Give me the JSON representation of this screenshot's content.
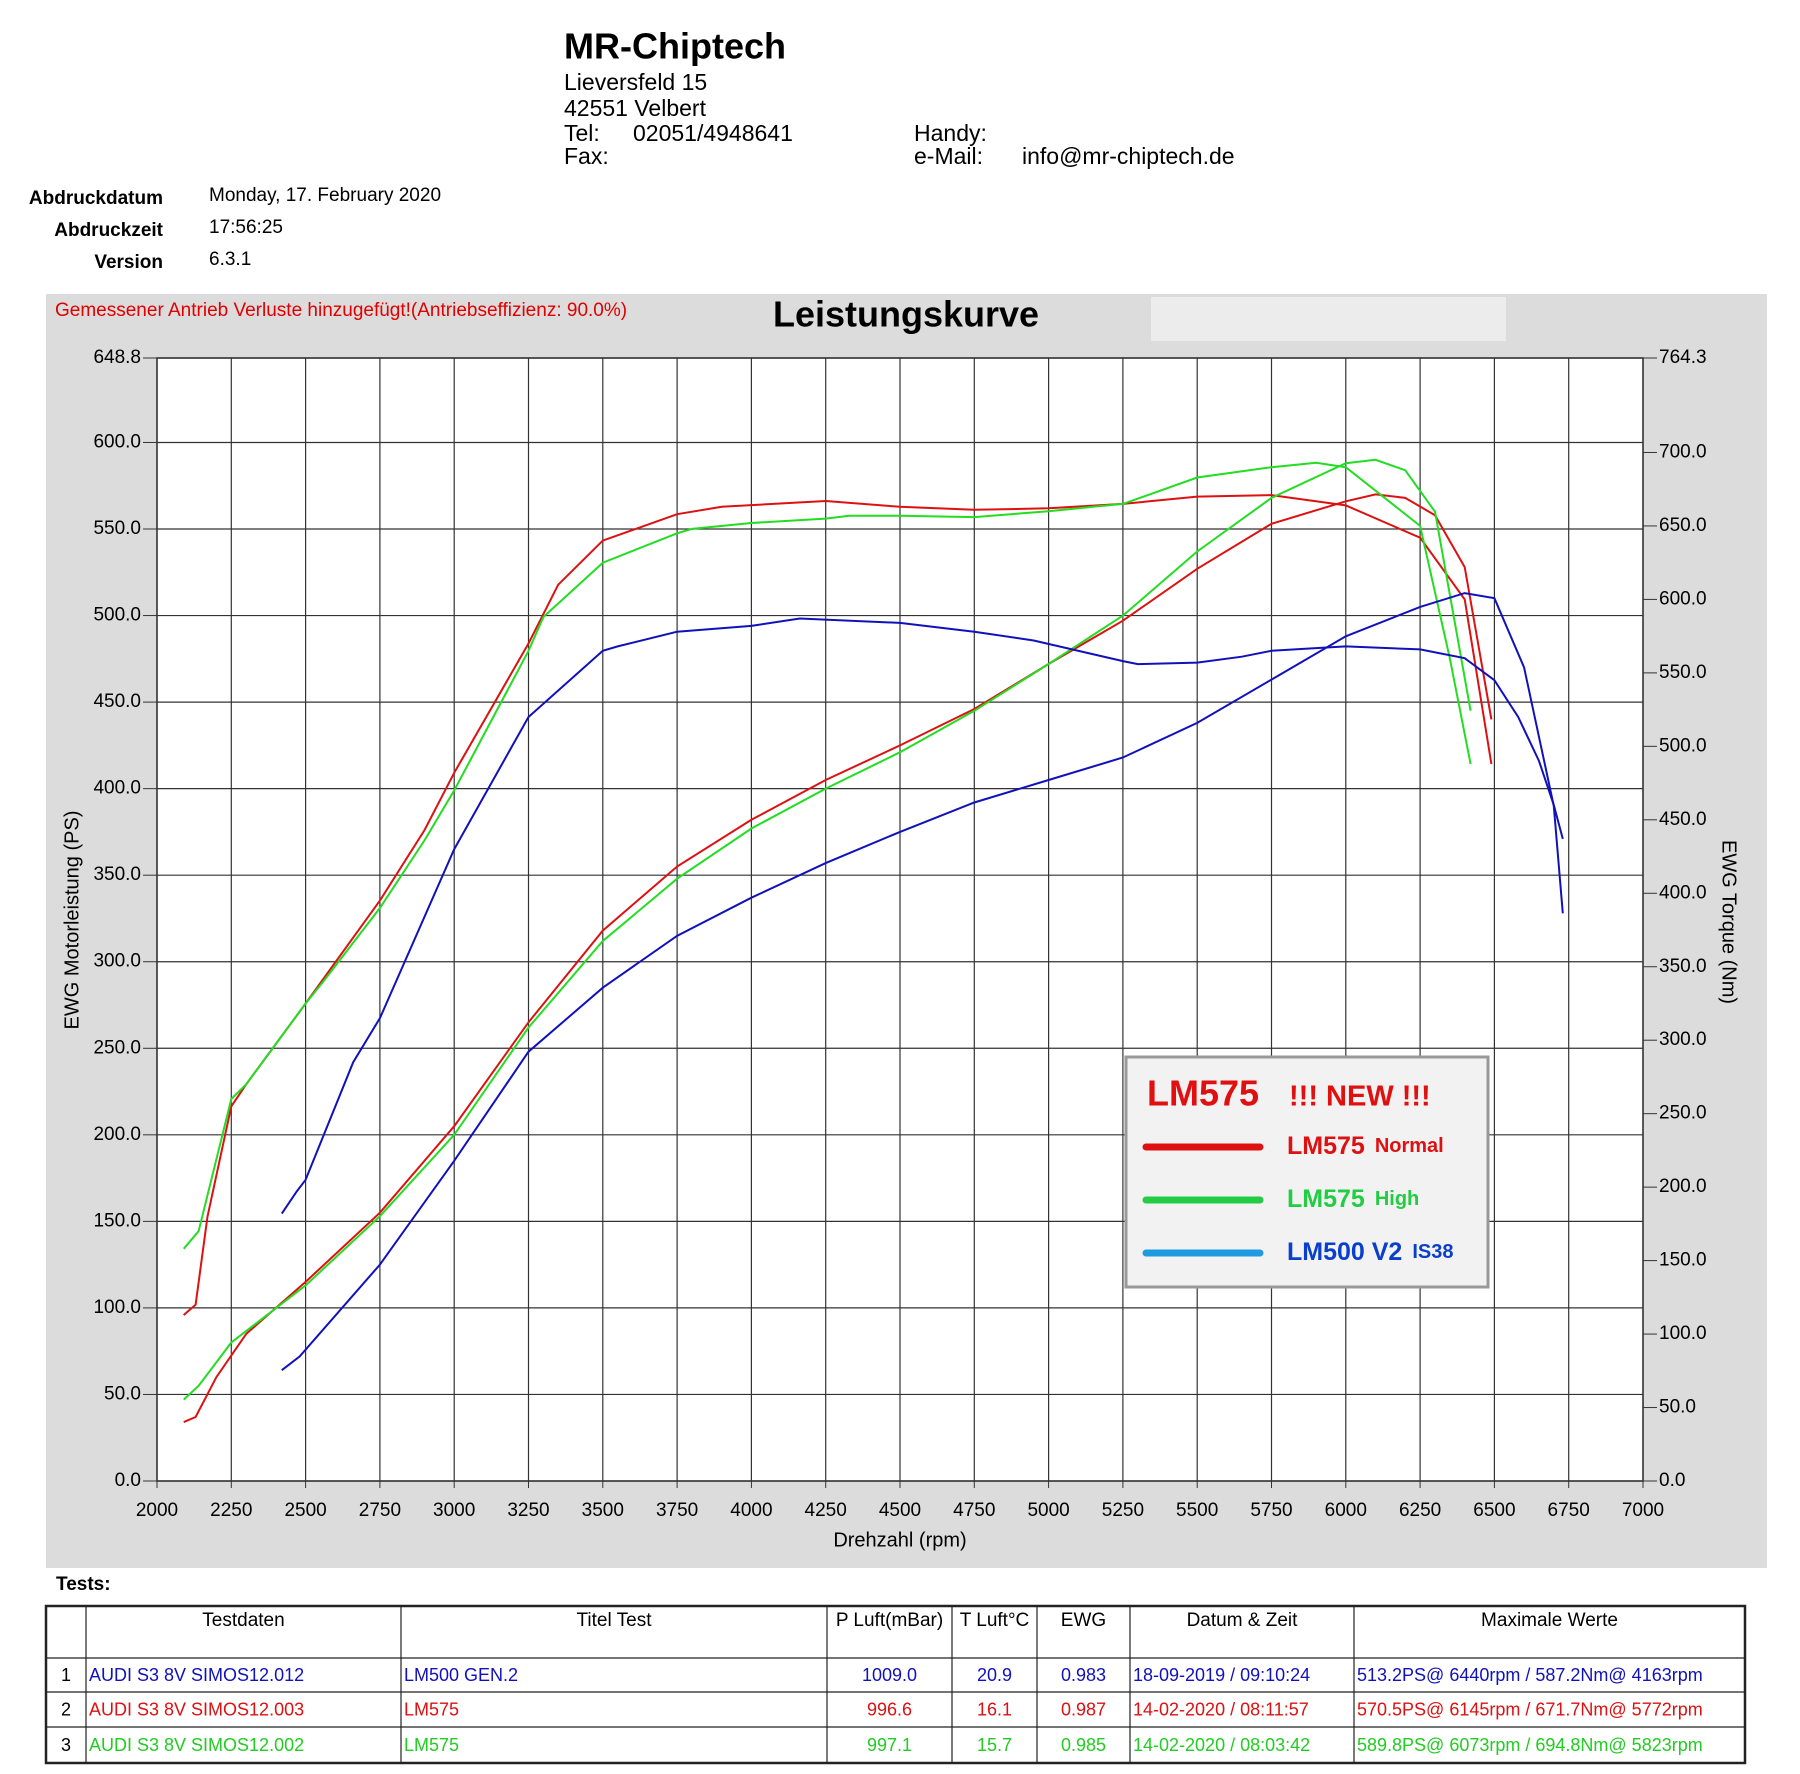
{
  "header": {
    "company": "MR-Chiptech",
    "street": "Lieversfeld 15",
    "city": "42551 Velbert",
    "tel_label": "Tel:",
    "tel": "02051/4948641",
    "fax_label": "Fax:",
    "handy_label": "Handy:",
    "email_label": "e-Mail:",
    "email": "info@mr-chiptech.de"
  },
  "info": [
    {
      "label": "Abdruckdatum",
      "value": "Monday, 17. February 2020"
    },
    {
      "label": "Abdruckzeit",
      "value": "17:56:25"
    },
    {
      "label": "Version",
      "value": "6.3.1"
    }
  ],
  "chart_data": {
    "type": "line",
    "title": "Leistungskurve",
    "note": "Gemessener Antrieb Verluste hinzugefügt!(Antriebseffizienz: 90.0%)",
    "xlabel": "Drehzahl (rpm)",
    "ylabel": "EWG Motorleistung (PS)",
    "y2label": "EWG Torque (Nm)",
    "xlim": [
      2000,
      7000
    ],
    "xticks": [
      2000,
      2250,
      2500,
      2750,
      3000,
      3250,
      3500,
      3750,
      4000,
      4250,
      4500,
      4750,
      5000,
      5250,
      5500,
      5750,
      6000,
      6250,
      6500,
      6750,
      7000
    ],
    "ylim": [
      0,
      648.8
    ],
    "yticks": [
      {
        "value": 0,
        "label": "0.0"
      },
      {
        "value": 50,
        "label": "50.0"
      },
      {
        "value": 100,
        "label": "100.0"
      },
      {
        "value": 150,
        "label": "150.0"
      },
      {
        "value": 200,
        "label": "200.0"
      },
      {
        "value": 250,
        "label": "250.0"
      },
      {
        "value": 300,
        "label": "300.0"
      },
      {
        "value": 350,
        "label": "350.0"
      },
      {
        "value": 400,
        "label": "400.0"
      },
      {
        "value": 450,
        "label": "450.0"
      },
      {
        "value": 500,
        "label": "500.0"
      },
      {
        "value": 550,
        "label": "550.0"
      },
      {
        "value": 600,
        "label": "600.0"
      },
      648.8
    ],
    "y2lim": [
      0,
      764.3
    ],
    "y2ticks": [
      {
        "value": 0,
        "label": "0.0"
      },
      {
        "value": 50,
        "label": "50.0"
      },
      {
        "value": 100,
        "label": "100.0"
      },
      {
        "value": 150,
        "label": "150.0"
      },
      {
        "value": 200,
        "label": "200.0"
      },
      {
        "value": 250,
        "label": "250.0"
      },
      {
        "value": 300,
        "label": "300.0"
      },
      {
        "value": 350,
        "label": "350.0"
      },
      {
        "value": 400,
        "label": "400.0"
      },
      {
        "value": 450,
        "label": "450.0"
      },
      {
        "value": 500,
        "label": "500.0"
      },
      {
        "value": 550,
        "label": "550.0"
      },
      {
        "value": 600,
        "label": "600.0"
      },
      {
        "value": 650,
        "label": "650.0"
      },
      {
        "value": 700,
        "label": "700.0"
      },
      764.3
    ],
    "grid": true,
    "series": [
      {
        "color": "#dd1111",
        "x": [
          2090,
          2130,
          2200,
          2300,
          2500,
          2750,
          3000,
          3250,
          3500,
          3750,
          4000,
          4250,
          4500,
          4750,
          5000,
          5250,
          5500,
          5750,
          6000,
          6100,
          6200,
          6300,
          6400,
          6490
        ],
        "values": [
          34,
          37,
          60,
          85,
          115,
          155,
          205,
          265,
          318,
          355,
          382,
          405,
          425,
          446,
          472,
          497,
          527,
          553,
          566,
          570,
          568,
          558,
          528,
          440
        ]
      },
      {
        "color": "#dd1111",
        "axis": "y2",
        "x": [
          2090,
          2130,
          2170,
          2250,
          2300,
          2500,
          2750,
          2900,
          3000,
          3250,
          3350,
          3500,
          3750,
          3900,
          4250,
          4500,
          4750,
          5000,
          5250,
          5500,
          5750,
          6000,
          6250,
          6400,
          6490
        ],
        "values": [
          113,
          120,
          180,
          255,
          270,
          325,
          395,
          443,
          482,
          570,
          610,
          640,
          658,
          663,
          667,
          663,
          661,
          662,
          665,
          670,
          671,
          664,
          642,
          600,
          488
        ]
      },
      {
        "color": "#22dd22",
        "x": [
          2090,
          2140,
          2250,
          2500,
          2750,
          3000,
          3250,
          3500,
          3750,
          4000,
          4250,
          4500,
          4750,
          5000,
          5250,
          5500,
          5750,
          6000,
          6100,
          6200,
          6300,
          6420
        ],
        "values": [
          47,
          55,
          80,
          113,
          153,
          200,
          262,
          312,
          348,
          377,
          400,
          421,
          445,
          472,
          500,
          537,
          568,
          588,
          590,
          584,
          560,
          445
        ]
      },
      {
        "color": "#22dd22",
        "axis": "y2",
        "x": [
          2090,
          2140,
          2250,
          2300,
          2500,
          2560,
          2750,
          2900,
          3000,
          3250,
          3300,
          3500,
          3750,
          3800,
          4000,
          4250,
          4330,
          4500,
          4750,
          5000,
          5150,
          5250,
          5500,
          5750,
          5900,
          6000,
          6250,
          6350,
          6420
        ],
        "values": [
          158,
          170,
          260,
          270,
          325,
          340,
          390,
          436,
          470,
          565,
          588,
          625,
          645,
          648,
          652,
          655,
          657,
          657,
          656,
          660,
          663,
          665,
          683,
          690,
          693,
          690,
          650,
          560,
          488
        ]
      },
      {
        "color": "#1111bb",
        "x": [
          2420,
          2480,
          2750,
          3000,
          3250,
          3500,
          3750,
          4000,
          4250,
          4500,
          4750,
          5000,
          5250,
          5500,
          5750,
          6000,
          6250,
          6400,
          6500,
          6600,
          6700,
          6730
        ],
        "values": [
          64,
          72,
          125,
          185,
          248,
          285,
          315,
          337,
          357,
          375,
          392,
          405,
          418,
          438,
          463,
          488,
          505,
          513,
          510,
          470,
          390,
          328
        ]
      },
      {
        "color": "#1111bb",
        "axis": "y2",
        "x": [
          2420,
          2470,
          2500,
          2660,
          2750,
          3000,
          3250,
          3500,
          3550,
          3750,
          4000,
          4163,
          4500,
          4750,
          4950,
          5250,
          5300,
          5500,
          5650,
          5750,
          6000,
          6250,
          6400,
          6500,
          6580,
          6650,
          6700,
          6730
        ],
        "values": [
          182,
          197,
          205,
          285,
          315,
          430,
          520,
          565,
          568,
          578,
          582,
          587,
          584,
          578,
          572,
          558,
          556,
          557,
          561,
          565,
          568,
          566,
          560,
          545,
          520,
          490,
          460,
          437
        ]
      }
    ],
    "legend": {
      "title": "LM575",
      "title_note": "!!! NEW !!!",
      "items": [
        {
          "label": "LM575",
          "sub": "Normal",
          "line_color": "#dd1111",
          "text_color": "#dd1111"
        },
        {
          "label": "LM575",
          "sub": "High",
          "line_color": "#22cc44",
          "text_color": "#22cc44"
        },
        {
          "label": "LM500 V2",
          "sub": "IS38",
          "line_color": "#1e9be0",
          "text_color": "#0a3fcc"
        }
      ]
    }
  },
  "tests": {
    "label": "Tests:",
    "columns": [
      "Testdaten",
      "Titel Test",
      "P Luft(mBar)",
      "T Luft°C",
      "EWG",
      "Datum & Zeit",
      "Maximale Werte"
    ],
    "rows": [
      {
        "color": "#1111bb",
        "cells": [
          "1",
          "AUDI S3 8V SIMOS12.012",
          "LM500 GEN.2",
          "1009.0",
          "20.9",
          "0.983",
          "18-09-2019 / 09:10:24",
          "513.2PS@ 6440rpm / 587.2Nm@ 4163rpm"
        ]
      },
      {
        "color": "#dd1111",
        "cells": [
          "2",
          "AUDI S3 8V SIMOS12.003",
          "LM575",
          "996.6",
          "16.1",
          "0.987",
          "14-02-2020 / 08:11:57",
          "570.5PS@ 6145rpm / 671.7Nm@ 5772rpm"
        ]
      },
      {
        "color": "#22cc22",
        "cells": [
          "3",
          "AUDI S3 8V SIMOS12.002",
          "LM575",
          "997.1",
          "15.7",
          "0.985",
          "14-02-2020 / 08:03:42",
          "589.8PS@ 6073rpm / 694.8Nm@ 5823rpm"
        ]
      }
    ]
  }
}
